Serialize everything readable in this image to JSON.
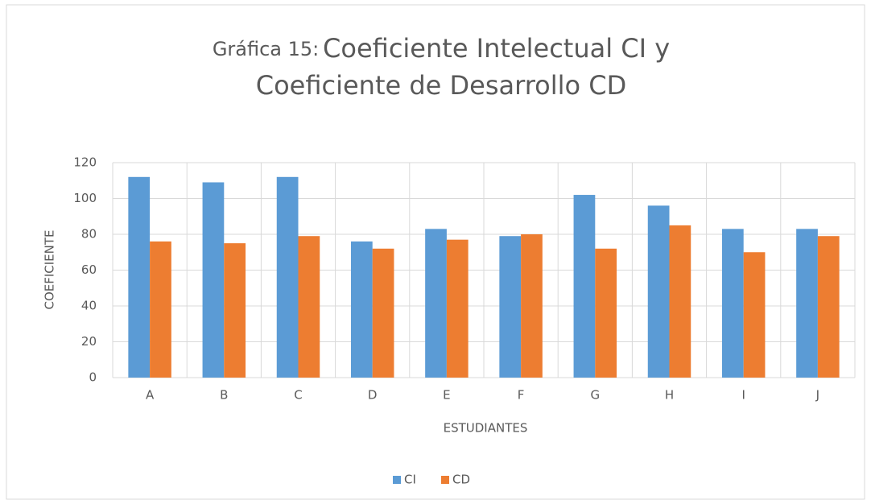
{
  "chart_data": {
    "type": "bar",
    "title": [
      "Gráfica 15:",
      "Coeficiente Intelectual CI y",
      "Coeficiente de Desarrollo CD"
    ],
    "x_label": "ESTUDIANTES",
    "y_label": "COEFICIENTE",
    "categories": [
      "A",
      "B",
      "C",
      "D",
      "E",
      "F",
      "G",
      "H",
      "I",
      "J"
    ],
    "series": [
      {
        "name": "CI",
        "color": "#5b9bd5",
        "values": [
          112,
          109,
          112,
          76,
          83,
          79,
          102,
          96,
          83,
          83
        ]
      },
      {
        "name": "CD",
        "color": "#ed7d31",
        "values": [
          76,
          75,
          79,
          72,
          77,
          80,
          72,
          85,
          70,
          79
        ]
      }
    ],
    "ylim": [
      0,
      120
    ],
    "yticks": [
      0,
      20,
      40,
      60,
      80,
      100,
      120
    ],
    "grid": true,
    "legend": "bottom"
  }
}
